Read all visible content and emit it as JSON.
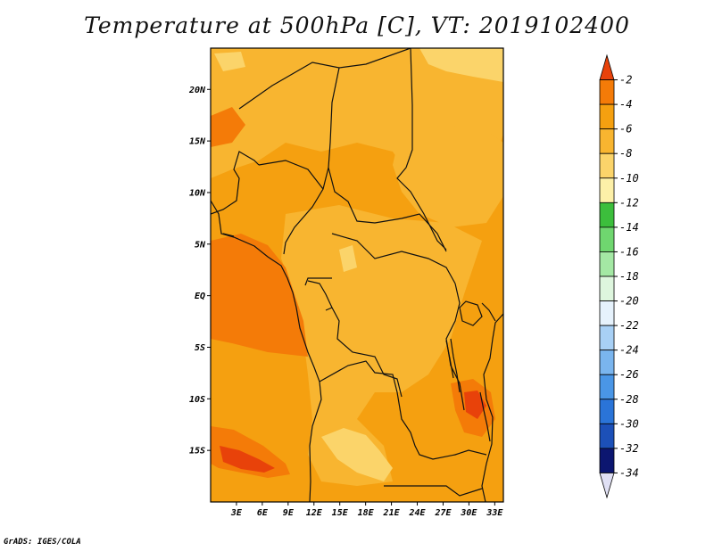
{
  "title": "Temperature at 500hPa [C], VT: 2019102400",
  "credit": "GrADS: IGES/COLA",
  "map": {
    "variable": "Temperature at 500hPa",
    "units": "C",
    "lon_range": [
      0,
      34
    ],
    "lat_range": [
      -20,
      24
    ],
    "lat_ticks": [
      {
        "value": 20,
        "label": "20N"
      },
      {
        "value": 15,
        "label": "15N"
      },
      {
        "value": 10,
        "label": "10N"
      },
      {
        "value": 5,
        "label": "5N"
      },
      {
        "value": 0,
        "label": "EQ"
      },
      {
        "value": -5,
        "label": "5S"
      },
      {
        "value": -10,
        "label": "10S"
      },
      {
        "value": -15,
        "label": "15S"
      }
    ],
    "lon_ticks": [
      {
        "value": 3,
        "label": "3E"
      },
      {
        "value": 6,
        "label": "6E"
      },
      {
        "value": 9,
        "label": "9E"
      },
      {
        "value": 12,
        "label": "12E"
      },
      {
        "value": 15,
        "label": "15E"
      },
      {
        "value": 18,
        "label": "18E"
      },
      {
        "value": 21,
        "label": "21E"
      },
      {
        "value": 24,
        "label": "24E"
      },
      {
        "value": 27,
        "label": "27E"
      },
      {
        "value": 30,
        "label": "30E"
      },
      {
        "value": 33,
        "label": "33E"
      }
    ]
  },
  "colorbar": {
    "labels": [
      "-2",
      "-4",
      "-6",
      "-8",
      "-10",
      "-12",
      "-14",
      "-16",
      "-18",
      "-20",
      "-22",
      "-24",
      "-26",
      "-28",
      "-30",
      "-32",
      "-34"
    ],
    "colors": [
      "#e8420a",
      "#f47b08",
      "#f5a010",
      "#f8b530",
      "#fbd46a",
      "#fdf0a8",
      "#3cbe3c",
      "#6fd66f",
      "#a4e8a4",
      "#def6de",
      "#e6f2fc",
      "#a8d0f5",
      "#7ab5ee",
      "#4a96e6",
      "#2a74d8",
      "#1c50b8",
      "#0c1670",
      "#e0e0f4"
    ]
  }
}
